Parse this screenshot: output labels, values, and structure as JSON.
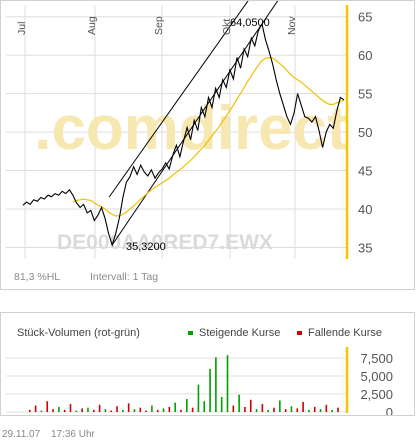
{
  "price_chart": {
    "watermark": ".comdirect",
    "security_id": "DE000AA0RED7.EWX",
    "high_label": "64,0500",
    "low_label": "35,3200",
    "status_percent": "81,3 %HL",
    "interval_label": "Intervall: 1 Tag"
  },
  "volume_chart": {
    "title": "Stück-Volumen (rot-grün)",
    "legend_up": "Steigende Kurse",
    "legend_down": "Fallende Kurse"
  },
  "footer": {
    "date": "29.11.07",
    "time": "17:36 Uhr"
  },
  "colors": {
    "price_line": "#000000",
    "moving_average": "#f0c000",
    "channel": "#000000",
    "rising_volume": "#00a000",
    "falling_volume": "#cc0000",
    "current_marker": "#f5c500",
    "watermark": "#f7e7b0",
    "security_id_text": "#dadada"
  },
  "chart_data": [
    {
      "type": "line",
      "title": "",
      "x_ticks": [
        "Jul",
        "Aug",
        "Sep",
        "Okt",
        "Nov"
      ],
      "y_ticks": [
        35,
        40,
        45,
        50,
        55,
        60,
        65
      ],
      "ylim": [
        33.5,
        66
      ],
      "grid": true,
      "annotations": [
        {
          "label": "64,0500",
          "value": 64.05
        },
        {
          "label": "35,3200",
          "value": 35.32
        }
      ],
      "series": [
        {
          "values": [
            40.5,
            40.9,
            40.6,
            41.2,
            41.0,
            41.5,
            41.3,
            41.8,
            41.6,
            42.0,
            41.8,
            42.3,
            42.0,
            42.5,
            41.8,
            40.8,
            40.2,
            40.6,
            39.5,
            39.8,
            38.5,
            39.2,
            40.2,
            38.8,
            36.8,
            35.32,
            36.8,
            38.8,
            41.5,
            43.5,
            44.2,
            45.5,
            44.5,
            45.7,
            44.8,
            44.3,
            45.1,
            44.0,
            44.7,
            45.2,
            46.0,
            45.2,
            47.0,
            48.3,
            46.8,
            48.8,
            50.6,
            49.0,
            51.5,
            50.2,
            53.2,
            52.0,
            54.5,
            53.2,
            55.7,
            54.5,
            56.8,
            55.8,
            58.1,
            56.9,
            59.7,
            58.3,
            60.8,
            59.8,
            62.2,
            61.2,
            63.2,
            64.05,
            62.0,
            60.5,
            58.8,
            56.8,
            55.0,
            53.5,
            52.0,
            51.0,
            52.5,
            55.0,
            53.5,
            52.0,
            51.8,
            51.3,
            52.0,
            50.2,
            48.0,
            50.0,
            51.0,
            50.5,
            52.8,
            54.5,
            54.2
          ]
        },
        {
          "values": [
            null,
            null,
            null,
            null,
            null,
            null,
            null,
            null,
            null,
            null,
            null,
            null,
            null,
            null,
            40.9,
            41.1,
            41.2,
            41.3,
            41.2,
            41.1,
            40.8,
            40.5,
            40.3,
            40.0,
            39.6,
            39.3,
            39.1,
            39.1,
            39.3,
            39.6,
            40.0,
            40.4,
            40.8,
            41.3,
            41.7,
            42.1,
            42.5,
            42.8,
            43.1,
            43.4,
            43.7,
            44.0,
            44.4,
            44.8,
            45.1,
            45.5,
            45.9,
            46.3,
            46.8,
            47.3,
            47.8,
            48.3,
            48.9,
            49.5,
            50.1,
            50.7,
            51.4,
            52.1,
            52.8,
            53.5,
            54.3,
            55.0,
            55.8,
            56.6,
            57.3,
            58.0,
            58.7,
            59.3,
            59.6,
            59.7,
            59.6,
            59.3,
            58.9,
            58.5,
            58.0,
            57.5,
            57.1,
            56.8,
            56.5,
            56.1,
            55.7,
            55.3,
            54.9,
            54.5,
            54.1,
            53.8,
            53.6,
            53.6,
            53.8,
            54.0,
            54.1
          ]
        }
      ]
    },
    {
      "type": "bar",
      "title": "Stück-Volumen (rot-grün)",
      "y_ticks": [
        0,
        2500,
        5000,
        7500
      ],
      "ylim": [
        0,
        8200
      ],
      "legend": "top-right",
      "series": [
        {
          "name": "Steigende Kurse",
          "values": [
            0,
            0,
            0,
            0,
            0,
            0,
            0,
            0,
            0,
            0,
            0,
            0,
            0,
            0,
            0,
            0,
            0,
            0,
            0,
            0,
            0,
            0,
            0,
            0,
            0,
            0,
            0,
            0,
            0,
            0,
            0,
            0,
            0,
            0,
            0,
            0,
            0,
            0,
            0,
            0,
            0,
            0,
            0,
            0,
            0,
            0,
            3800,
            1500,
            6000,
            7600,
            2100,
            7900,
            0,
            0,
            0,
            0,
            0,
            0,
            0,
            0,
            0,
            0,
            0,
            0,
            0,
            0,
            0,
            0,
            0,
            0,
            0,
            0,
            0,
            0,
            0,
            0,
            0,
            0,
            0,
            0,
            0,
            0,
            0,
            0,
            0,
            0,
            0,
            0,
            0,
            0,
            0,
            0,
            0,
            0,
            0,
            0,
            0,
            0,
            0,
            0,
            0,
            0,
            0,
            0,
            0,
            0,
            0,
            0,
            0,
            0,
            0,
            0,
            0,
            0,
            0,
            0,
            0,
            0,
            0,
            0,
            0,
            0,
            0,
            0,
            0,
            0,
            0,
            0,
            0,
            0,
            0,
            0,
            0,
            0,
            0,
            0,
            0,
            0,
            0,
            0
          ]
        },
        {
          "name": "Fallende Kurse",
          "values": [
            0,
            0,
            0,
            0,
            0,
            0,
            0,
            0,
            0,
            0,
            0,
            0,
            0,
            0,
            0,
            0,
            0,
            0,
            0,
            0,
            0,
            0,
            0,
            0,
            0,
            0,
            0,
            0,
            0,
            0,
            0,
            0,
            0,
            0,
            0,
            0,
            0,
            0,
            0,
            0,
            0,
            0,
            0,
            0,
            0,
            0,
            0,
            0,
            0,
            0,
            0,
            0,
            0,
            0,
            0,
            0,
            0,
            0,
            0,
            0,
            0,
            0,
            0,
            0,
            0,
            0,
            0,
            0,
            0,
            0,
            0,
            0,
            0,
            0,
            0,
            0,
            0,
            0,
            0,
            0,
            0,
            0,
            0,
            0,
            0,
            0,
            0,
            0,
            0,
            0,
            0,
            0,
            0,
            0,
            0,
            0,
            0,
            0,
            0,
            0,
            0,
            0,
            0,
            0,
            0,
            0,
            0,
            0,
            0,
            0,
            0,
            0,
            0,
            0,
            0,
            0,
            0,
            0,
            0,
            0,
            0,
            0,
            0,
            0,
            0,
            0,
            0,
            0,
            0,
            0,
            0,
            0,
            0,
            0,
            0,
            0,
            0,
            0,
            0
          ]
        }
      ],
      "volume_bars": [
        {
          "v": 300,
          "up": false
        },
        {
          "v": 900,
          "up": false
        },
        {
          "v": 200,
          "up": true
        },
        {
          "v": 1500,
          "up": false
        },
        {
          "v": 400,
          "up": false
        },
        {
          "v": 700,
          "up": true
        },
        {
          "v": 300,
          "up": false
        },
        {
          "v": 1100,
          "up": false
        },
        {
          "v": 200,
          "up": true
        },
        {
          "v": 500,
          "up": false
        },
        {
          "v": 600,
          "up": true
        },
        {
          "v": 300,
          "up": false
        },
        {
          "v": 1000,
          "up": false
        },
        {
          "v": 400,
          "up": true
        },
        {
          "v": 200,
          "up": false
        },
        {
          "v": 800,
          "up": false
        },
        {
          "v": 300,
          "up": true
        },
        {
          "v": 1200,
          "up": false
        },
        {
          "v": 400,
          "up": true
        },
        {
          "v": 600,
          "up": false
        },
        {
          "v": 200,
          "up": false
        },
        {
          "v": 900,
          "up": true
        },
        {
          "v": 300,
          "up": false
        },
        {
          "v": 500,
          "up": true
        },
        {
          "v": 700,
          "up": false
        },
        {
          "v": 1300,
          "up": true
        },
        {
          "v": 300,
          "up": false
        },
        {
          "v": 1800,
          "up": true
        },
        {
          "v": 600,
          "up": false
        },
        {
          "v": 3800,
          "up": true
        },
        {
          "v": 1500,
          "up": true
        },
        {
          "v": 6000,
          "up": true
        },
        {
          "v": 7600,
          "up": true
        },
        {
          "v": 2100,
          "up": true
        },
        {
          "v": 7900,
          "up": true
        },
        {
          "v": 900,
          "up": false
        },
        {
          "v": 2400,
          "up": true
        },
        {
          "v": 700,
          "up": false
        },
        {
          "v": 1700,
          "up": false
        },
        {
          "v": 400,
          "up": true
        },
        {
          "v": 1100,
          "up": false
        },
        {
          "v": 300,
          "up": true
        },
        {
          "v": 600,
          "up": false
        },
        {
          "v": 1600,
          "up": true
        },
        {
          "v": 400,
          "up": false
        },
        {
          "v": 800,
          "up": true
        },
        {
          "v": 500,
          "up": false
        },
        {
          "v": 1400,
          "up": false
        },
        {
          "v": 300,
          "up": true
        },
        {
          "v": 700,
          "up": false
        },
        {
          "v": 400,
          "up": true
        },
        {
          "v": 1000,
          "up": false
        },
        {
          "v": 300,
          "up": true
        },
        {
          "v": 600,
          "up": false
        }
      ]
    }
  ]
}
